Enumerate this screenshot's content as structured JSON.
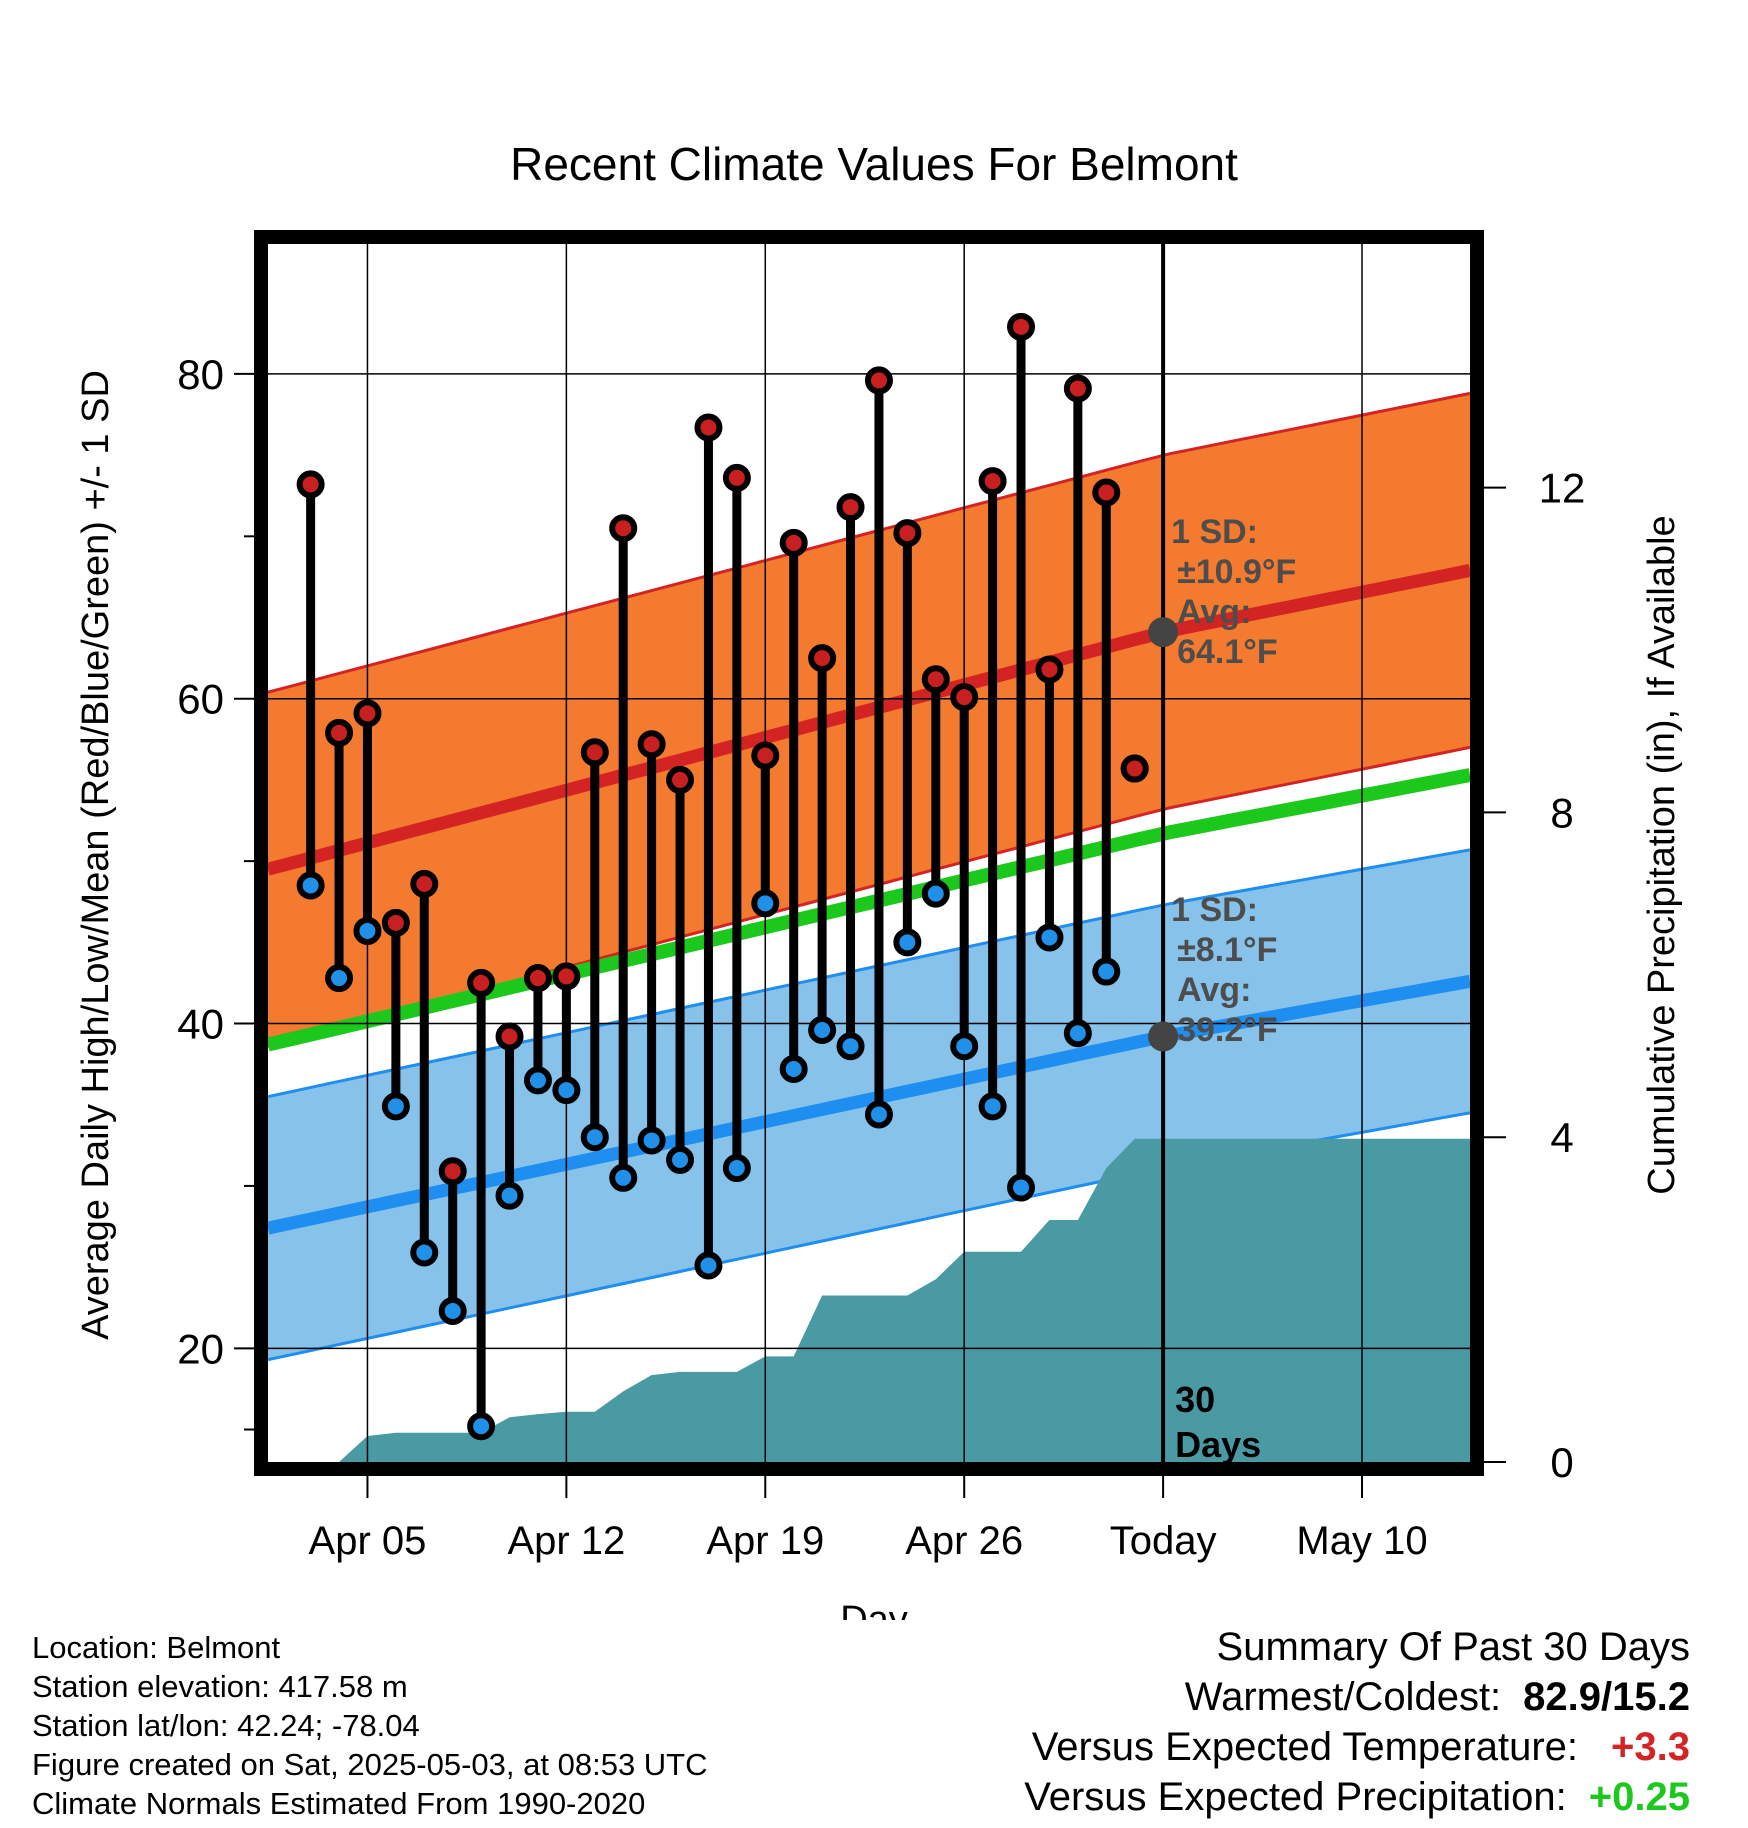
{
  "chart_data": {
    "type": "line",
    "title": "Recent Climate Values For Belmont",
    "xlabel": "Day",
    "ylabel": "Average Daily High/Low/Mean (Red/Blue/Green) +/- 1 SD",
    "y2label": "Cumulative Precipitation (in), If Available",
    "ylim": [
      13,
      88
    ],
    "y2lim": [
      0,
      15
    ],
    "yticks": [
      20,
      40,
      60,
      80
    ],
    "y2ticks": [
      0,
      4,
      8,
      12
    ],
    "xticks": [
      "Apr 05",
      "Apr 12",
      "Apr 19",
      "Apr 26",
      "Today",
      "May 10"
    ],
    "xtick_days": [
      5,
      12,
      19,
      26,
      33,
      40
    ],
    "xlim": [
      1.5,
      43.8
    ],
    "today_day": 33,
    "today_label": [
      "30",
      "Days"
    ],
    "grid": true,
    "colors": {
      "high": "#d42323",
      "high_band": "#f47a2f",
      "low": "#1e8ef0",
      "low_band": "#86c2ea",
      "mean": "#1dc81d",
      "precip": "#4a9aa4",
      "high_marker": "#c82020",
      "low_marker": "#2090e8",
      "avg_dot": "#444444"
    },
    "normals": {
      "days": [
        1.5,
        33,
        43.8
      ],
      "high_avg": [
        49.5,
        64.1,
        67.9
      ],
      "high_sd": 10.9,
      "low_avg": [
        27.4,
        39.2,
        42.6
      ],
      "low_sd": 8.1,
      "mean_avg": [
        38.7,
        51.7,
        55.3
      ]
    },
    "high_annotation": [
      "1 SD:",
      "±10.9°F",
      "Avg:",
      "64.1°F"
    ],
    "low_annotation": [
      "1 SD:",
      "±8.1°F",
      "Avg:",
      "39.2°F"
    ],
    "series": [
      {
        "name": "High",
        "x": [
          3,
          4,
          5,
          6,
          7,
          8,
          9,
          10,
          11,
          12,
          13,
          14,
          15,
          16,
          17,
          18,
          19,
          20,
          21,
          22,
          23,
          24,
          25,
          26,
          27,
          28,
          29,
          30,
          31,
          32
        ],
        "values": [
          73.2,
          57.9,
          59.1,
          46.2,
          48.6,
          30.9,
          42.5,
          39.2,
          42.8,
          42.9,
          56.7,
          70.5,
          57.2,
          55.0,
          76.7,
          73.6,
          56.5,
          69.6,
          62.5,
          71.8,
          79.6,
          70.2,
          61.2,
          60.1,
          73.4,
          82.9,
          61.8,
          79.1,
          72.7,
          55.7
        ]
      },
      {
        "name": "Low",
        "x": [
          3,
          4,
          5,
          6,
          7,
          8,
          9,
          10,
          11,
          12,
          13,
          14,
          15,
          16,
          17,
          18,
          19,
          20,
          21,
          22,
          23,
          24,
          25,
          26,
          27,
          28,
          29,
          30,
          31,
          32
        ],
        "values": [
          48.5,
          42.8,
          45.7,
          34.9,
          25.9,
          22.3,
          15.2,
          29.4,
          36.5,
          35.9,
          33.0,
          30.5,
          32.8,
          31.6,
          25.1,
          31.1,
          47.4,
          37.2,
          39.6,
          38.6,
          34.4,
          45.0,
          48.0,
          38.6,
          34.9,
          29.9,
          45.3,
          39.4,
          43.2,
          55.7
        ]
      },
      {
        "name": "Cumulative Precipitation",
        "axis": "y2",
        "x": [
          1.5,
          4,
          5,
          6,
          7,
          8,
          9,
          10,
          11,
          12,
          13,
          14,
          15,
          16,
          17,
          18,
          19,
          20,
          21,
          22,
          23,
          24,
          25,
          26,
          27,
          28,
          29,
          30,
          31,
          32,
          33,
          43.8
        ],
        "values": [
          0.0,
          0.0,
          0.32,
          0.36,
          0.36,
          0.36,
          0.36,
          0.55,
          0.59,
          0.62,
          0.62,
          0.87,
          1.07,
          1.11,
          1.11,
          1.11,
          1.3,
          1.3,
          2.05,
          2.05,
          2.05,
          2.05,
          2.25,
          2.59,
          2.59,
          2.59,
          2.98,
          2.98,
          3.62,
          3.98,
          3.98,
          3.98
        ]
      }
    ]
  },
  "info": {
    "location": "Location: Belmont",
    "elevation": "Station elevation: 417.58 m",
    "latlon": "Station lat/lon: 42.24; -78.04",
    "created": "Figure created on Sat, 2025-05-03, at 08:53 UTC",
    "normals": "Climate Normals Estimated From 1990-2020"
  },
  "summary": {
    "heading": "Summary Of Past 30 Days",
    "warmest_label": "Warmest/Coldest:",
    "warmest_value": "82.9/15.2",
    "temp_label": "Versus Expected Temperature:",
    "temp_value": "+3.3",
    "temp_color": "#d42323",
    "precip_label": "Versus Expected Precipitation:",
    "precip_value": "+0.25",
    "precip_color": "#1dc81d"
  }
}
